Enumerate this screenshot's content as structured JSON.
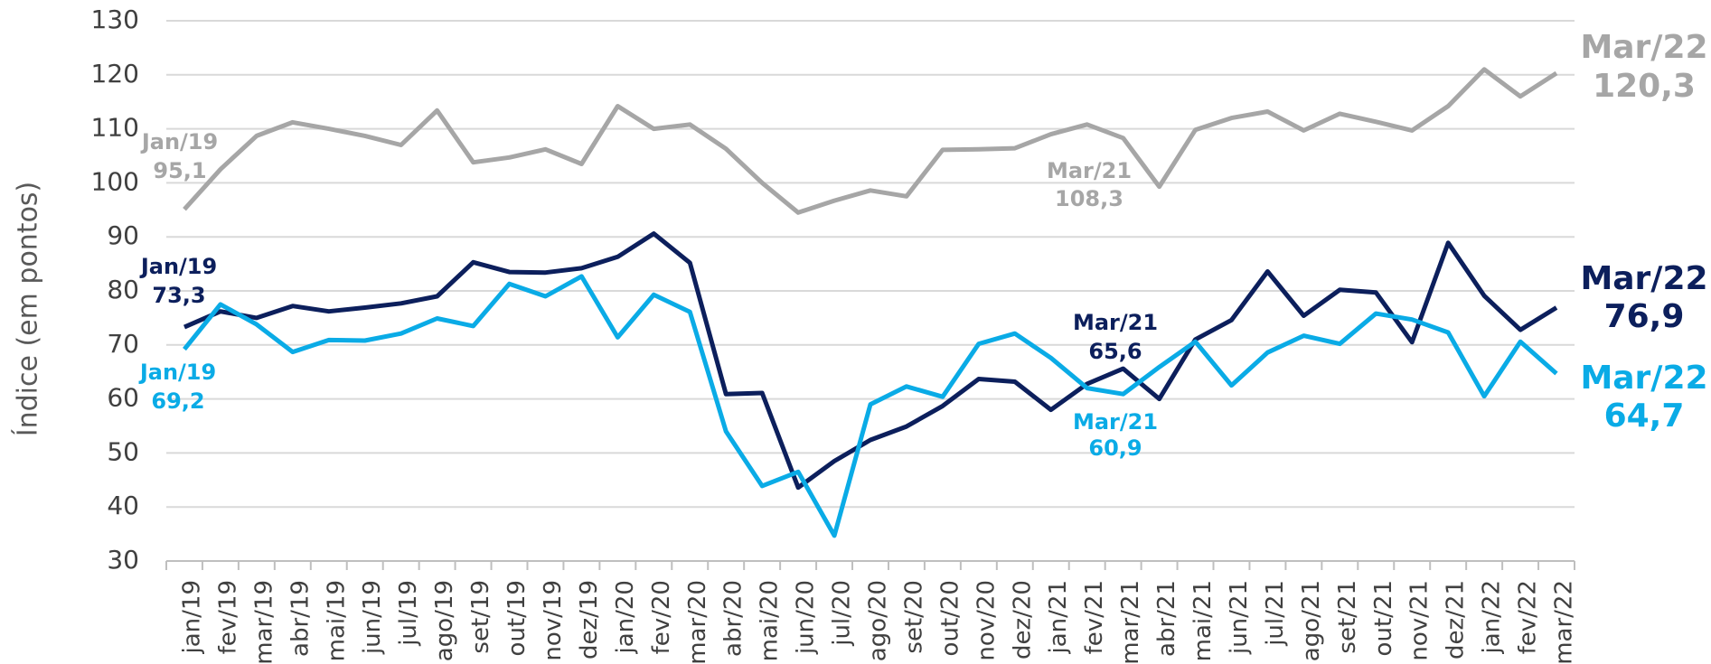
{
  "chart_data": {
    "type": "line",
    "y_label": "Índice (em pontos)",
    "categories": [
      "jan/19",
      "fev/19",
      "mar/19",
      "abr/19",
      "mai/19",
      "jun/19",
      "jul/19",
      "ago/19",
      "set/19",
      "out/19",
      "nov/19",
      "dez/19",
      "jan/20",
      "fev/20",
      "mar/20",
      "abr/20",
      "mai/20",
      "jun/20",
      "jul/20",
      "ago/20",
      "set/20",
      "out/20",
      "nov/20",
      "dez/20",
      "jan/21",
      "fev/21",
      "mar/21",
      "abr/21",
      "mai/21",
      "jun/21",
      "jul/21",
      "ago/21",
      "set/21",
      "out/21",
      "nov/21",
      "dez/21",
      "jan/22",
      "fev/22",
      "mar/22"
    ],
    "series": [
      {
        "color": "#a6a6a6",
        "values": [
          95.1,
          102.5,
          108.7,
          111.2,
          110,
          108.7,
          107,
          113.4,
          103.8,
          104.7,
          106.2,
          103.5,
          114.2,
          110,
          110.8,
          106.3,
          100,
          94.5,
          96.7,
          98.6,
          97.5,
          106.1,
          106.2,
          106.4,
          109,
          110.8,
          108.3,
          99.3,
          109.8,
          112,
          113.2,
          109.7,
          112.8,
          111.3,
          109.7,
          114.2,
          121,
          116,
          120.3
        ]
      },
      {
        "color": "#0c1f5c",
        "values": [
          73.3,
          76.2,
          75,
          77.2,
          76.2,
          76.9,
          77.7,
          79,
          85.3,
          83.5,
          83.4,
          84.2,
          86.3,
          90.6,
          85.2,
          60.9,
          61.1,
          43.6,
          48.5,
          52.4,
          54.9,
          58.7,
          63.7,
          63.2,
          58,
          62.8,
          65.6,
          60,
          71,
          74.6,
          83.6,
          75.4,
          80.2,
          79.7,
          70.5,
          88.9,
          79.1,
          72.8,
          76.9
        ]
      },
      {
        "color": "#0aabe6",
        "values": [
          69.2,
          77.5,
          73.8,
          68.7,
          70.9,
          70.8,
          72.1,
          74.9,
          73.5,
          81.3,
          79,
          82.7,
          71.4,
          79.3,
          76.1,
          54,
          43.9,
          46.5,
          34.7,
          59,
          62.3,
          60.4,
          70.2,
          72.1,
          67.6,
          62,
          60.9,
          65.9,
          70.6,
          62.5,
          68.6,
          71.7,
          70.2,
          75.8,
          74.7,
          72.3,
          60.5,
          70.6,
          64.7
        ]
      }
    ],
    "annotations": [
      {
        "lines": [
          "Jan/19",
          "95,1"
        ],
        "color": "#a6a6a6"
      },
      {
        "lines": [
          "Mar/21",
          "108,3"
        ],
        "color": "#a6a6a6"
      },
      {
        "lines": [
          "Mar/22",
          "120,3"
        ],
        "color": "#a6a6a6"
      },
      {
        "lines": [
          "Jan/19",
          "73,3"
        ],
        "color": "#0c1f5c"
      },
      {
        "lines": [
          "Mar/21",
          "65,6"
        ],
        "color": "#0c1f5c"
      },
      {
        "lines": [
          "Mar/22",
          "76,9"
        ],
        "color": "#0c1f5c"
      },
      {
        "lines": [
          "Jan/19",
          "69,2"
        ],
        "color": "#0aabe6"
      },
      {
        "lines": [
          "Mar/21",
          "60,9"
        ],
        "color": "#0aabe6"
      },
      {
        "lines": [
          "Mar/22",
          "64,7"
        ],
        "color": "#0aabe6"
      }
    ],
    "ylim": [
      30,
      130
    ],
    "yticks": [
      30,
      40,
      50,
      60,
      70,
      80,
      90,
      100,
      110,
      120,
      130
    ],
    "grid": true
  }
}
